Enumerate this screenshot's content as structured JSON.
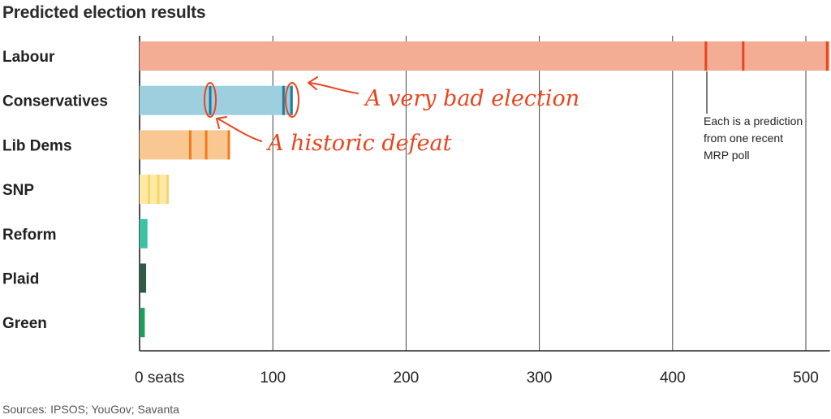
{
  "title": "Predicted election results",
  "source": "Sources: IPSOS; YouGov; Savanta",
  "chart_data": {
    "type": "bar",
    "orientation": "horizontal",
    "xlim": [
      0,
      518
    ],
    "x_ticks": [
      {
        "value": 0,
        "label": "0 seats"
      },
      {
        "value": 100,
        "label": "100"
      },
      {
        "value": 200,
        "label": "200"
      },
      {
        "value": 300,
        "label": "300"
      },
      {
        "value": 400,
        "label": "400"
      },
      {
        "value": 500,
        "label": "500"
      }
    ],
    "grid": true,
    "parties": [
      {
        "name": "Labour",
        "fill": "#f2ad94",
        "mark": "#e8451e",
        "range": [
          0,
          518
        ],
        "predictions": [
          425,
          453,
          516
        ]
      },
      {
        "name": "Conservatives",
        "fill": "#9ecfdf",
        "mark": "#1f7a9c",
        "range": [
          0,
          115
        ],
        "predictions": [
          53,
          108,
          114
        ]
      },
      {
        "name": "Lib Dems",
        "fill": "#f8c792",
        "mark": "#f07c1a",
        "range": [
          0,
          67
        ],
        "predictions": [
          38,
          50,
          67
        ]
      },
      {
        "name": "SNP",
        "fill": "#fde9a4",
        "mark": "#f8d36a",
        "range": [
          0,
          21
        ],
        "predictions": [
          7,
          14,
          21
        ]
      },
      {
        "name": "Reform",
        "fill": "#3cc1a3",
        "mark": "#3cc1a3",
        "range": [
          0,
          5
        ],
        "predictions": [
          5
        ]
      },
      {
        "name": "Plaid",
        "fill": "#2f5a45",
        "mark": "#2f5a45",
        "range": [
          0,
          4
        ],
        "predictions": [
          4
        ]
      },
      {
        "name": "Green",
        "fill": "#1f9d5a",
        "mark": "#1f9d5a",
        "range": [
          0,
          3
        ],
        "predictions": [
          3
        ]
      }
    ],
    "annotations": {
      "prediction_note": "Each is a prediction from one recent MRP poll",
      "prediction_note_lines": [
        "Each is a prediction",
        "from one recent",
        "MRP poll"
      ],
      "very_bad": "A very bad election",
      "historic_defeat": "A historic defeat"
    },
    "annotation_color": "#e8451e"
  }
}
